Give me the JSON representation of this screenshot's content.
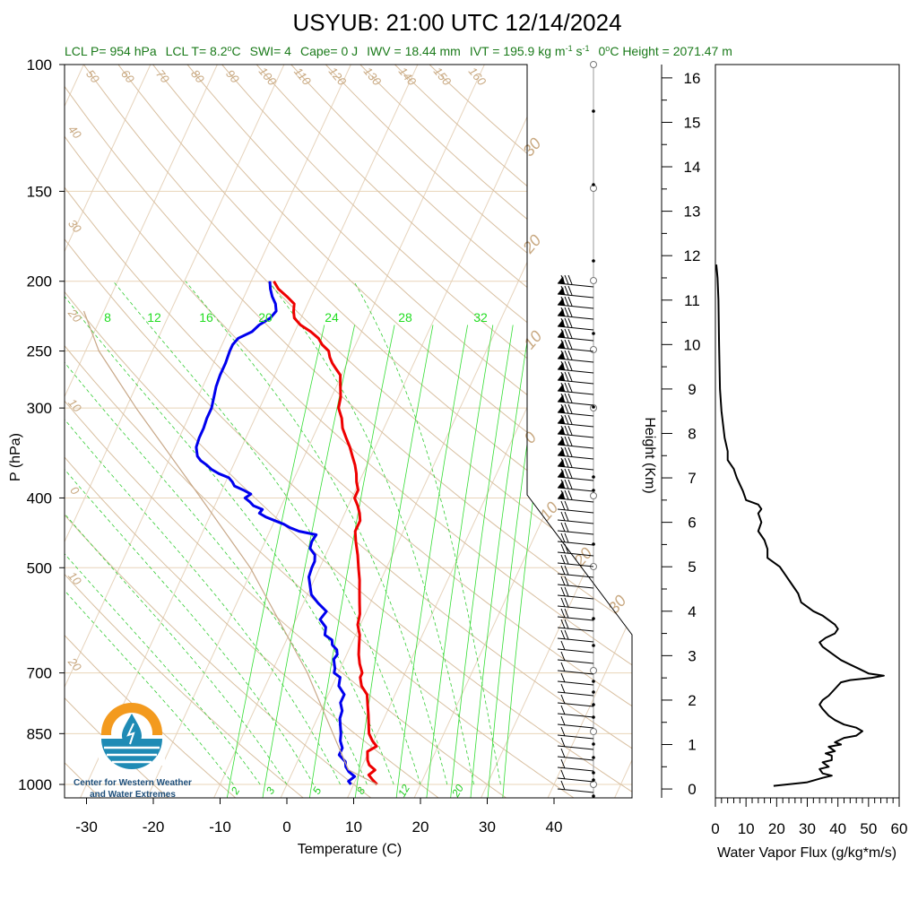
{
  "title": "USYUB: 21:00 UTC 12/14/2024",
  "subtitle": {
    "lcl_p": "LCL P= 954 hPa",
    "lcl_t_prefix": "LCL T= 8.2",
    "lcl_t_unit": "C",
    "swi": "SWI= 4",
    "cape": "Cape= 0 J",
    "iwv": "IWV = 18.44 mm",
    "ivt_prefix": "IVT = 195.9 kg m",
    "ivt_exp1": "-1",
    "ivt_mid": " s",
    "ivt_exp2": "-1",
    "zero_height_prefix": "0",
    "zero_height_rest": "C Height = 2071.47 m"
  },
  "logo": {
    "line1": "Center for Western Weather",
    "line2": "and Water Extremes"
  },
  "colors": {
    "temperature": "#ee0000",
    "dewpoint": "#0000ee",
    "isobar": "#e8d4b8",
    "dry_adiabat": "#d8bfa0",
    "isotherm": "#e6d3bc",
    "mixing_ratio": "#33dd33",
    "moist_adiabat": "#33cc33",
    "parcel": "#c8a888",
    "logo_orange": "#f39a1e",
    "logo_blue": "#1f8bb5"
  },
  "chart_data": [
    {
      "type": "skew-t",
      "xlabel": "Temperature (C)",
      "ylabel": "P (hPa)",
      "x_ticks": [
        "-30",
        "-20",
        "-10",
        "0",
        "10",
        "20",
        "30",
        "40"
      ],
      "x_tick_values": [
        -30,
        -20,
        -10,
        0,
        10,
        20,
        30,
        40
      ],
      "p_ticks": [
        "100",
        "150",
        "200",
        "250",
        "300",
        "400",
        "500",
        "700",
        "850",
        "1000"
      ],
      "p_tick_values": [
        100,
        150,
        200,
        250,
        300,
        400,
        500,
        700,
        850,
        1000
      ],
      "xlim": [
        -33,
        50
      ],
      "plim": [
        100,
        1000
      ],
      "mixing_ratio_labels": [
        "8",
        "12",
        "16",
        "20",
        "24",
        "28",
        "32"
      ],
      "mixing_ratio_values_top": [
        8,
        12,
        16,
        20,
        24,
        28,
        32
      ],
      "mixing_ratio_labels_bottom": [
        "2",
        "3",
        "5",
        "8",
        "12",
        "20"
      ],
      "dry_adiabat_labels_top": [
        "50",
        "60",
        "70",
        "80",
        "90",
        "100",
        "110",
        "120",
        "130",
        "140",
        "150",
        "160"
      ],
      "dry_adiabat_labels_left": [
        "40",
        "30",
        "20",
        "10",
        "0",
        "10",
        "20"
      ],
      "moist_adiabat_labels_right": [
        "30",
        "20",
        "10",
        "0",
        "10",
        "20",
        "30"
      ],
      "series": [
        {
          "name": "Temperature",
          "points": [
            [
              1000,
              13.5
            ],
            [
              985,
              12.5
            ],
            [
              970,
              11.6
            ],
            [
              955,
              12.2
            ],
            [
              940,
              11.0
            ],
            [
              925,
              10.4
            ],
            [
              900,
              9.8
            ],
            [
              885,
              10.8
            ],
            [
              870,
              9.8
            ],
            [
              850,
              8.8
            ],
            [
              800,
              7.4
            ],
            [
              775,
              6.6
            ],
            [
              750,
              5.8
            ],
            [
              730,
              4.4
            ],
            [
              710,
              3.6
            ],
            [
              700,
              3.6
            ],
            [
              680,
              2.6
            ],
            [
              660,
              1.8
            ],
            [
              640,
              1.2
            ],
            [
              620,
              0.6
            ],
            [
              600,
              -0.4
            ],
            [
              580,
              -0.8
            ],
            [
              560,
              -1.6
            ],
            [
              540,
              -2.4
            ],
            [
              520,
              -3.2
            ],
            [
              500,
              -4.2
            ],
            [
              480,
              -5.2
            ],
            [
              460,
              -6.4
            ],
            [
              445,
              -7.2
            ],
            [
              430,
              -7.2
            ],
            [
              420,
              -7.8
            ],
            [
              410,
              -8.6
            ],
            [
              400,
              -9.6
            ],
            [
              390,
              -9.6
            ],
            [
              380,
              -10.4
            ],
            [
              370,
              -11.0
            ],
            [
              360,
              -11.8
            ],
            [
              350,
              -12.8
            ],
            [
              340,
              -13.8
            ],
            [
              330,
              -15.0
            ],
            [
              320,
              -16.2
            ],
            [
              310,
              -17.0
            ],
            [
              300,
              -18.2
            ],
            [
              290,
              -18.6
            ],
            [
              280,
              -19.4
            ],
            [
              270,
              -20.2
            ],
            [
              265,
              -21.2
            ],
            [
              260,
              -22.2
            ],
            [
              255,
              -23.0
            ],
            [
              250,
              -23.6
            ],
            [
              245,
              -25.0
            ],
            [
              240,
              -26.0
            ],
            [
              235,
              -27.6
            ],
            [
              230,
              -29.6
            ],
            [
              225,
              -31.0
            ],
            [
              220,
              -31.6
            ],
            [
              215,
              -32.0
            ],
            [
              210,
              -33.6
            ],
            [
              205,
              -35.4
            ],
            [
              200,
              -36.6
            ]
          ]
        },
        {
          "name": "Dewpoint",
          "points": [
            [
              1000,
              9.6
            ],
            [
              990,
              9.0
            ],
            [
              975,
              9.6
            ],
            [
              960,
              8.4
            ],
            [
              945,
              7.6
            ],
            [
              930,
              7.2
            ],
            [
              910,
              5.8
            ],
            [
              890,
              5.8
            ],
            [
              870,
              5.0
            ],
            [
              850,
              4.6
            ],
            [
              830,
              4.0
            ],
            [
              810,
              3.4
            ],
            [
              790,
              3.2
            ],
            [
              770,
              2.4
            ],
            [
              750,
              2.4
            ],
            [
              730,
              1.0
            ],
            [
              710,
              0.6
            ],
            [
              700,
              -0.6
            ],
            [
              690,
              -0.8
            ],
            [
              680,
              -1.2
            ],
            [
              670,
              -1.6
            ],
            [
              660,
              -1.4
            ],
            [
              650,
              -1.8
            ],
            [
              640,
              -2.8
            ],
            [
              630,
              -3.2
            ],
            [
              620,
              -4.6
            ],
            [
              605,
              -5.0
            ],
            [
              590,
              -6.4
            ],
            [
              575,
              -6.0
            ],
            [
              560,
              -7.8
            ],
            [
              545,
              -9.4
            ],
            [
              530,
              -10.2
            ],
            [
              515,
              -11.0
            ],
            [
              500,
              -11.2
            ],
            [
              490,
              -11.2
            ],
            [
              480,
              -11.6
            ],
            [
              470,
              -12.8
            ],
            [
              460,
              -13.0
            ],
            [
              450,
              -12.8
            ],
            [
              445,
              -15.6
            ],
            [
              440,
              -17.2
            ],
            [
              435,
              -18.4
            ],
            [
              430,
              -20.0
            ],
            [
              425,
              -21.6
            ],
            [
              420,
              -22.8
            ],
            [
              415,
              -22.6
            ],
            [
              410,
              -24.2
            ],
            [
              405,
              -25.0
            ],
            [
              400,
              -26.0
            ],
            [
              395,
              -25.4
            ],
            [
              390,
              -26.8
            ],
            [
              385,
              -28.4
            ],
            [
              380,
              -29.0
            ],
            [
              375,
              -29.8
            ],
            [
              370,
              -31.6
            ],
            [
              365,
              -33.0
            ],
            [
              360,
              -34.0
            ],
            [
              355,
              -35.2
            ],
            [
              350,
              -36.0
            ],
            [
              340,
              -36.8
            ],
            [
              330,
              -37.0
            ],
            [
              320,
              -37.0
            ],
            [
              310,
              -37.2
            ],
            [
              300,
              -37.2
            ],
            [
              290,
              -37.6
            ],
            [
              280,
              -38.0
            ],
            [
              270,
              -38.2
            ],
            [
              260,
              -38.2
            ],
            [
              250,
              -38.4
            ],
            [
              245,
              -38.4
            ],
            [
              240,
              -38.0
            ],
            [
              235,
              -36.4
            ],
            [
              230,
              -35.8
            ],
            [
              225,
              -34.6
            ],
            [
              220,
              -34.2
            ],
            [
              215,
              -34.8
            ],
            [
              210,
              -35.8
            ],
            [
              205,
              -36.6
            ],
            [
              200,
              -37.2
            ]
          ]
        },
        {
          "name": "Parcel",
          "points": [
            [
              1000,
              13.5
            ],
            [
              954,
              8.2
            ],
            [
              850,
              3.4
            ],
            [
              700,
              -4.6
            ],
            [
              500,
              -20.4
            ],
            [
              400,
              -32.6
            ],
            [
              300,
              -48.5
            ],
            [
              250,
              -58.0
            ],
            [
              220,
              -63.0
            ]
          ]
        }
      ]
    },
    {
      "type": "line",
      "xlabel": "Water Vapor Flux (g/kg*m/s)",
      "ylabel": "Height (Km)",
      "x_ticks": [
        "0",
        "10",
        "20",
        "30",
        "40",
        "50",
        "60"
      ],
      "x_tick_values": [
        0,
        10,
        20,
        30,
        40,
        50,
        60
      ],
      "y_ticks": [
        "0",
        "1",
        "2",
        "3",
        "4",
        "5",
        "6",
        "7",
        "8",
        "9",
        "10",
        "11",
        "12",
        "13",
        "14",
        "15",
        "16"
      ],
      "y_tick_values": [
        0,
        1,
        2,
        3,
        4,
        5,
        6,
        7,
        8,
        9,
        10,
        11,
        12,
        13,
        14,
        15,
        16
      ],
      "xlim": [
        0,
        60
      ],
      "ylim": [
        -0.2,
        16.3
      ],
      "series": [
        {
          "name": "Water Vapor Flux",
          "points": [
            [
              19,
              0.07
            ],
            [
              30,
              0.15
            ],
            [
              35,
              0.25
            ],
            [
              38,
              0.3
            ],
            [
              35,
              0.35
            ],
            [
              34,
              0.45
            ],
            [
              37,
              0.5
            ],
            [
              36,
              0.55
            ],
            [
              35,
              0.6
            ],
            [
              38,
              0.65
            ],
            [
              38,
              0.75
            ],
            [
              36,
              0.8
            ],
            [
              39,
              0.85
            ],
            [
              37,
              0.95
            ],
            [
              41,
              1.0
            ],
            [
              39,
              1.05
            ],
            [
              42,
              1.15
            ],
            [
              46,
              1.2
            ],
            [
              48,
              1.3
            ],
            [
              46,
              1.38
            ],
            [
              42,
              1.45
            ],
            [
              39,
              1.55
            ],
            [
              37,
              1.65
            ],
            [
              35,
              1.8
            ],
            [
              34,
              1.9
            ],
            [
              35,
              2.0
            ],
            [
              37,
              2.1
            ],
            [
              39,
              2.25
            ],
            [
              41,
              2.4
            ],
            [
              44,
              2.45
            ],
            [
              51,
              2.5
            ],
            [
              55,
              2.55
            ],
            [
              50,
              2.6
            ],
            [
              47,
              2.7
            ],
            [
              44,
              2.8
            ],
            [
              41,
              2.9
            ],
            [
              39,
              3.0
            ],
            [
              37,
              3.1
            ],
            [
              35,
              3.2
            ],
            [
              34,
              3.3
            ],
            [
              36,
              3.4
            ],
            [
              39,
              3.5
            ],
            [
              40,
              3.6
            ],
            [
              39,
              3.7
            ],
            [
              37,
              3.8
            ],
            [
              35,
              3.9
            ],
            [
              32,
              4.0
            ],
            [
              30,
              4.1
            ],
            [
              28,
              4.2
            ],
            [
              27,
              4.4
            ],
            [
              25,
              4.6
            ],
            [
              23,
              4.8
            ],
            [
              21,
              5.0
            ],
            [
              17,
              5.2
            ],
            [
              17,
              5.4
            ],
            [
              16,
              5.6
            ],
            [
              14,
              5.8
            ],
            [
              15,
              6.0
            ],
            [
              14,
              6.2
            ],
            [
              15,
              6.3
            ],
            [
              14,
              6.4
            ],
            [
              10,
              6.5
            ],
            [
              9,
              6.7
            ],
            [
              7,
              7.0
            ],
            [
              6,
              7.2
            ],
            [
              4,
              7.4
            ],
            [
              4,
              7.6
            ],
            [
              3,
              7.9
            ],
            [
              2,
              8.5
            ],
            [
              1.5,
              9.0
            ],
            [
              1.2,
              10.0
            ],
            [
              1.0,
              11.0
            ],
            [
              0.7,
              11.5
            ],
            [
              0.3,
              11.8
            ]
          ]
        }
      ]
    }
  ]
}
